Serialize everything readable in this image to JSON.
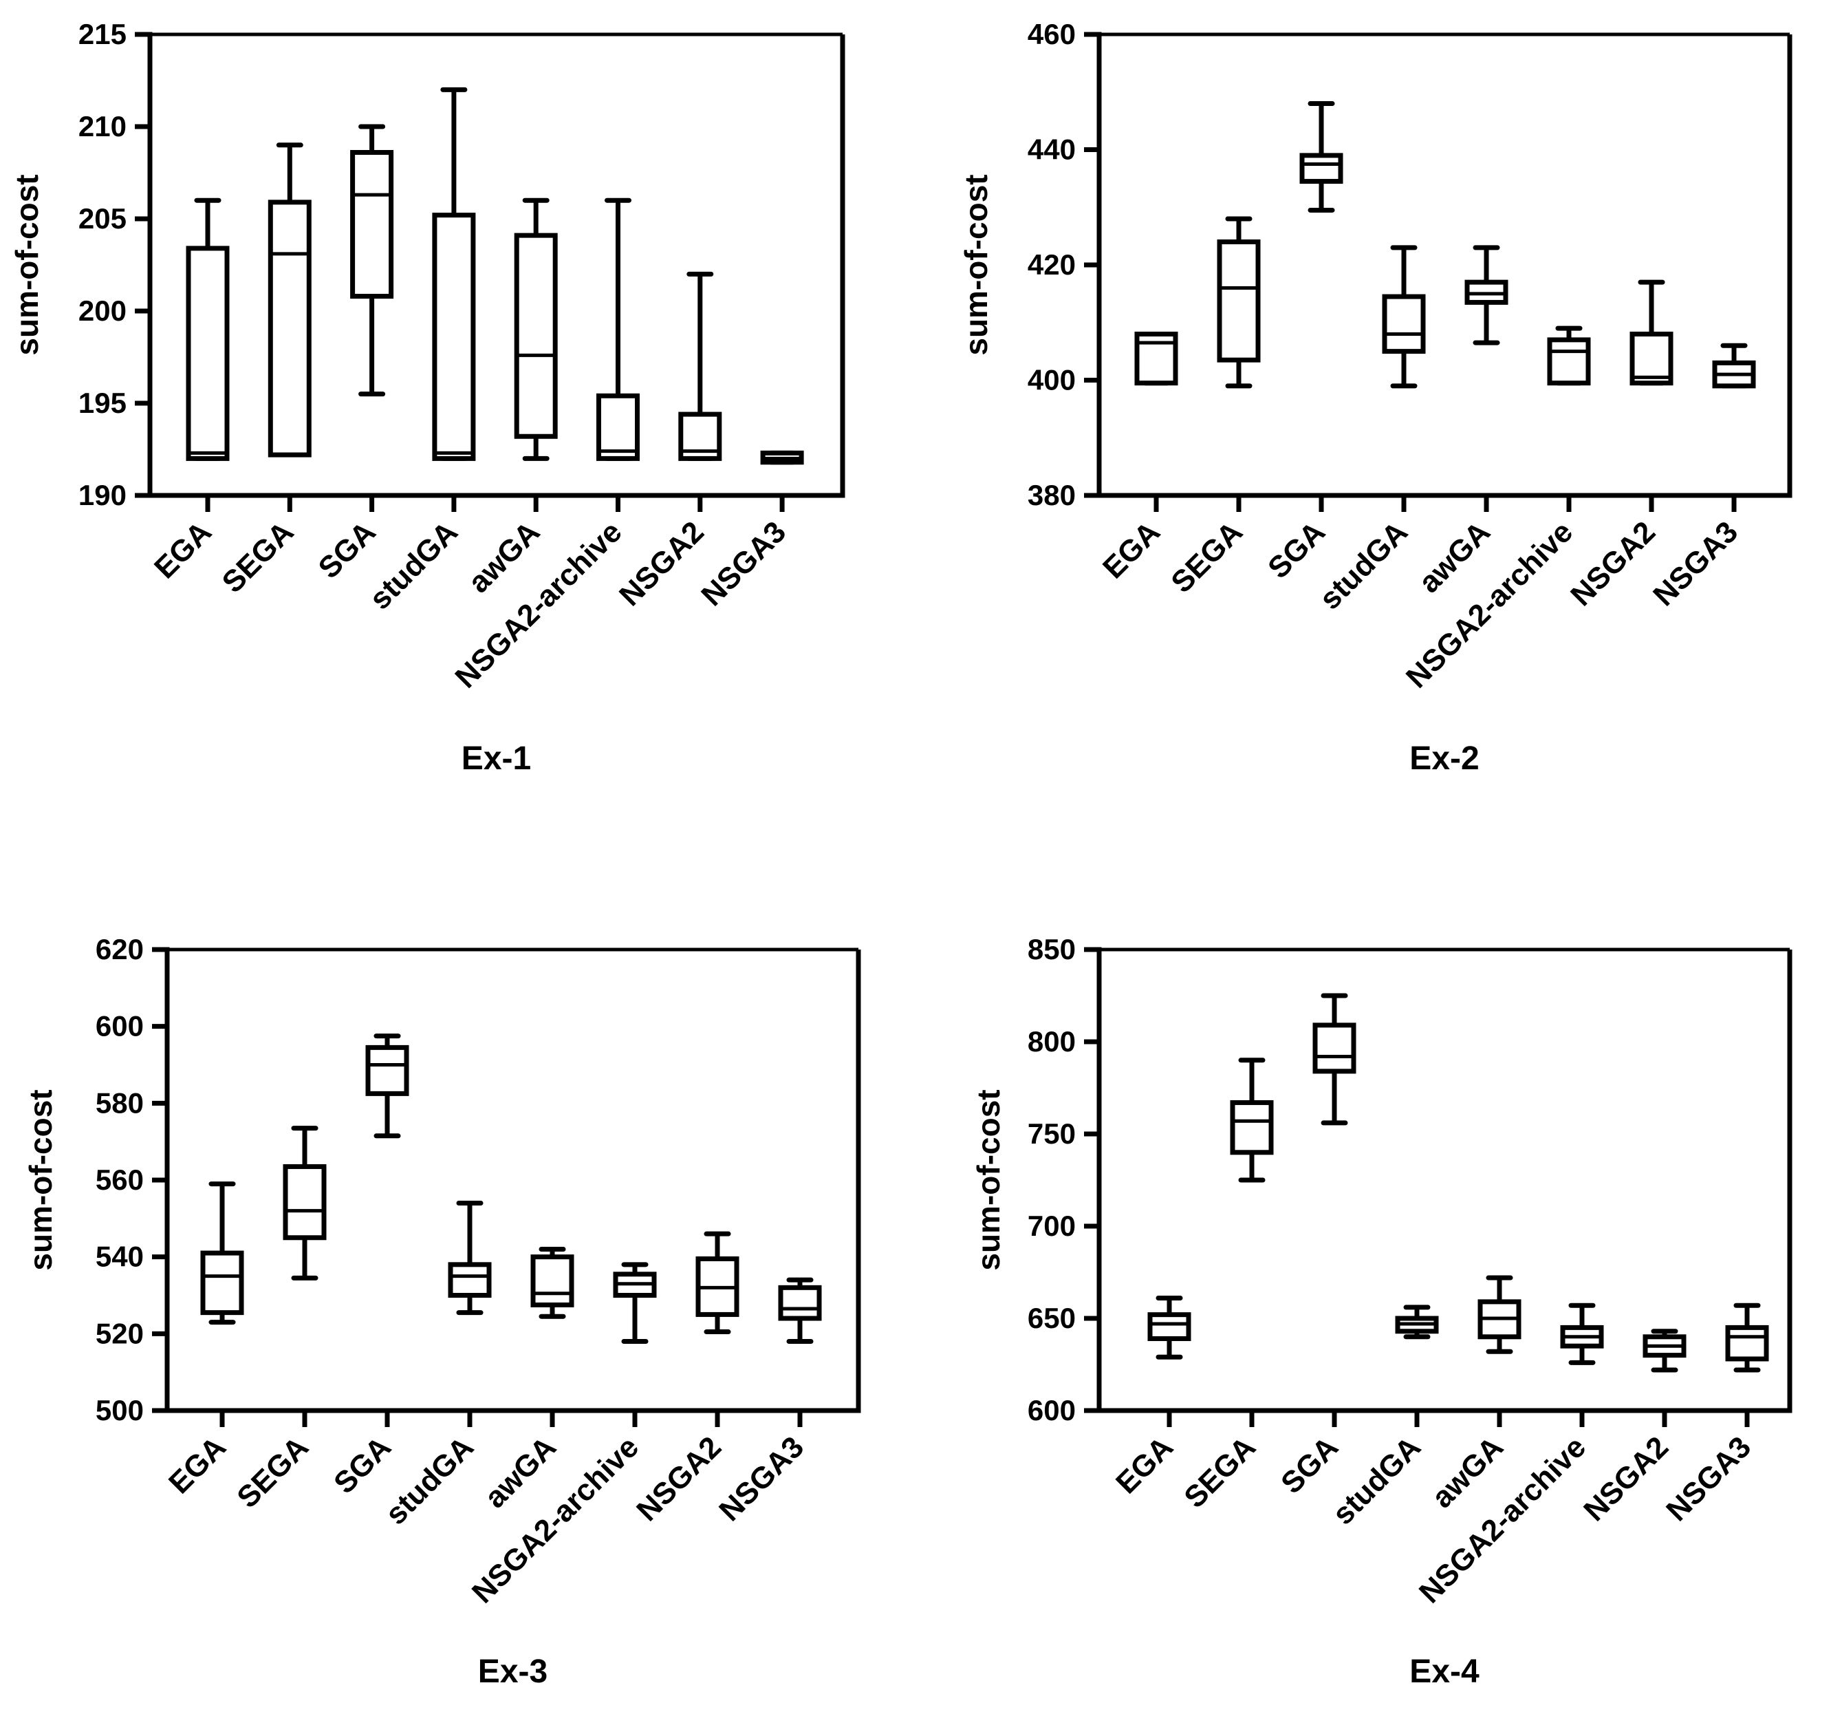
{
  "chart_data": [
    {
      "type": "box",
      "title": "Ex-1",
      "ylabel": "sum-of-cost",
      "ylim": [
        190,
        215
      ],
      "yticks": [
        190,
        195,
        200,
        205,
        210,
        215
      ],
      "ytick_labels": [
        "190",
        "195",
        "200",
        "205",
        "210",
        "215"
      ],
      "categories": [
        "EGA",
        "SEGA",
        "SGA",
        "studGA",
        "awGA",
        "NSGA2-archive",
        "NSGA2",
        "NSGA3"
      ],
      "boxes": [
        {
          "min": 192,
          "q1": 192,
          "median": 192.3,
          "q3": 203.4,
          "max": 206
        },
        {
          "min": 192.2,
          "q1": 192.2,
          "median": 203.1,
          "q3": 205.9,
          "max": 209
        },
        {
          "min": 195.5,
          "q1": 200.8,
          "median": 206.3,
          "q3": 208.6,
          "max": 210
        },
        {
          "min": 192,
          "q1": 192,
          "median": 192.3,
          "q3": 205.2,
          "max": 212
        },
        {
          "min": 192,
          "q1": 193.2,
          "median": 197.6,
          "q3": 204.1,
          "max": 206
        },
        {
          "min": 192,
          "q1": 192,
          "median": 192.4,
          "q3": 195.4,
          "max": 206
        },
        {
          "min": 192,
          "q1": 192,
          "median": 192.4,
          "q3": 194.4,
          "max": 202
        },
        {
          "min": 191.8,
          "q1": 191.8,
          "median": 192,
          "q3": 192.3,
          "max": 192.3
        }
      ]
    },
    {
      "type": "box",
      "title": "Ex-2",
      "ylabel": "sum-of-cost",
      "ylim": [
        380,
        460
      ],
      "yticks": [
        380,
        400,
        420,
        440,
        460
      ],
      "ytick_labels": [
        "380",
        "400",
        "420",
        "440",
        "460"
      ],
      "categories": [
        "EGA",
        "SEGA",
        "SGA",
        "studGA",
        "awGA",
        "NSGA2-archive",
        "NSGA2",
        "NSGA3"
      ],
      "boxes": [
        {
          "min": 399.5,
          "q1": 399.5,
          "median": 406.5,
          "q3": 408,
          "max": 408
        },
        {
          "min": 399,
          "q1": 403.5,
          "median": 416,
          "q3": 424,
          "max": 428
        },
        {
          "min": 429.5,
          "q1": 434.5,
          "median": 437.5,
          "q3": 439,
          "max": 448
        },
        {
          "min": 399,
          "q1": 405,
          "median": 408,
          "q3": 414.5,
          "max": 423
        },
        {
          "min": 406.5,
          "q1": 413.5,
          "median": 415,
          "q3": 417,
          "max": 423
        },
        {
          "min": 399.5,
          "q1": 399.5,
          "median": 405,
          "q3": 407,
          "max": 409
        },
        {
          "min": 399.5,
          "q1": 399.5,
          "median": 400.5,
          "q3": 408,
          "max": 417
        },
        {
          "min": 399,
          "q1": 399,
          "median": 401,
          "q3": 403,
          "max": 406
        }
      ]
    },
    {
      "type": "box",
      "title": "Ex-3",
      "ylabel": "sum-of-cost",
      "ylim": [
        500,
        620
      ],
      "yticks": [
        500,
        520,
        540,
        560,
        580,
        600,
        620
      ],
      "ytick_labels": [
        "500",
        "520",
        "540",
        "560",
        "580",
        "600",
        "620"
      ],
      "categories": [
        "EGA",
        "SEGA",
        "SGA",
        "studGA",
        "awGA",
        "NSGA2-archive",
        "NSGA2",
        "NSGA3"
      ],
      "boxes": [
        {
          "min": 523,
          "q1": 525.5,
          "median": 535,
          "q3": 541,
          "max": 559
        },
        {
          "min": 534.5,
          "q1": 545,
          "median": 552,
          "q3": 563.5,
          "max": 573.5
        },
        {
          "min": 571.5,
          "q1": 582.5,
          "median": 590,
          "q3": 594.5,
          "max": 597.5
        },
        {
          "min": 525.5,
          "q1": 530,
          "median": 535,
          "q3": 538,
          "max": 554
        },
        {
          "min": 524.5,
          "q1": 527.5,
          "median": 530.5,
          "q3": 540,
          "max": 542
        },
        {
          "min": 518,
          "q1": 530,
          "median": 533,
          "q3": 535.5,
          "max": 538
        },
        {
          "min": 520.5,
          "q1": 525,
          "median": 532,
          "q3": 539.5,
          "max": 546
        },
        {
          "min": 518,
          "q1": 524,
          "median": 526.5,
          "q3": 532,
          "max": 534
        }
      ]
    },
    {
      "type": "box",
      "title": "Ex-4",
      "ylabel": "sum-of-cost",
      "ylim": [
        600,
        850
      ],
      "yticks": [
        600,
        650,
        700,
        750,
        800,
        850
      ],
      "ytick_labels": [
        "600",
        "650",
        "700",
        "750",
        "800",
        "850"
      ],
      "categories": [
        "EGA",
        "SEGA",
        "SGA",
        "studGA",
        "awGA",
        "NSGA2-archive",
        "NSGA2",
        "NSGA3"
      ],
      "boxes": [
        {
          "min": 629,
          "q1": 639,
          "median": 647,
          "q3": 652,
          "max": 661
        },
        {
          "min": 725,
          "q1": 740,
          "median": 757,
          "q3": 767,
          "max": 790
        },
        {
          "min": 756,
          "q1": 784,
          "median": 792,
          "q3": 809,
          "max": 825
        },
        {
          "min": 640,
          "q1": 643,
          "median": 647,
          "q3": 650,
          "max": 656
        },
        {
          "min": 632,
          "q1": 640,
          "median": 650,
          "q3": 659,
          "max": 672
        },
        {
          "min": 626,
          "q1": 635,
          "median": 640,
          "q3": 645,
          "max": 657
        },
        {
          "min": 622,
          "q1": 630,
          "median": 635,
          "q3": 640,
          "max": 643
        },
        {
          "min": 622,
          "q1": 628,
          "median": 640,
          "q3": 645,
          "max": 657
        }
      ]
    }
  ]
}
